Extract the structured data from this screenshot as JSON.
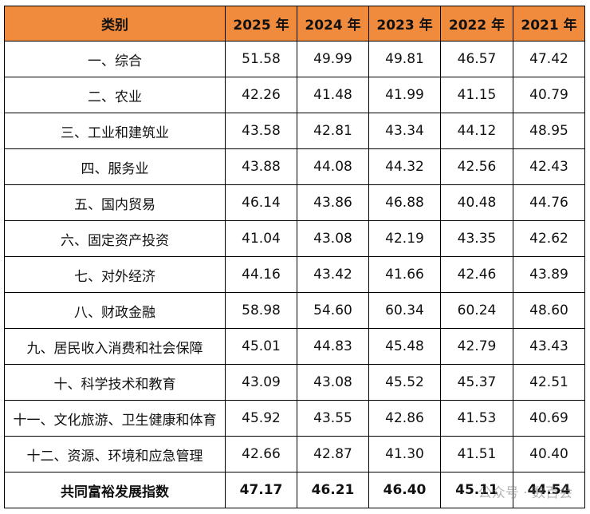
{
  "table": {
    "header": [
      "类别",
      "2025 年",
      "2024 年",
      "2023 年",
      "2022 年",
      "2021 年"
    ],
    "rows": [
      [
        "一、综合",
        "51.58",
        "49.99",
        "49.81",
        "46.57",
        "47.42"
      ],
      [
        "二、农业",
        "42.26",
        "41.48",
        "41.99",
        "41.15",
        "40.79"
      ],
      [
        "三、工业和建筑业",
        "43.58",
        "42.81",
        "43.34",
        "44.12",
        "48.95"
      ],
      [
        "四、服务业",
        "43.88",
        "44.08",
        "44.32",
        "42.56",
        "42.43"
      ],
      [
        "五、国内贸易",
        "46.14",
        "43.86",
        "46.88",
        "40.48",
        "44.76"
      ],
      [
        "六、固定资产投资",
        "41.04",
        "43.08",
        "42.19",
        "43.35",
        "42.62"
      ],
      [
        "七、对外经济",
        "44.16",
        "43.42",
        "41.66",
        "42.46",
        "43.89"
      ],
      [
        "八、财政金融",
        "58.98",
        "54.60",
        "60.34",
        "60.24",
        "48.60"
      ],
      [
        "九、居民收入消费和社会保障",
        "45.01",
        "44.83",
        "45.48",
        "42.79",
        "43.43"
      ],
      [
        "十、科学技术和教育",
        "43.09",
        "43.08",
        "45.52",
        "45.37",
        "42.51"
      ],
      [
        "十一、文化旅游、卫生健康和体育",
        "45.92",
        "43.55",
        "42.86",
        "41.53",
        "40.69"
      ],
      [
        "十二、资源、环境和应急管理",
        "42.66",
        "42.87",
        "41.30",
        "41.51",
        "40.40"
      ]
    ],
    "total_row": [
      "共同富裕发展指数",
      "47.17",
      "46.21",
      "46.40",
      "45.11",
      "44.54"
    ]
  },
  "watermark": "公众号 · 数百会"
}
